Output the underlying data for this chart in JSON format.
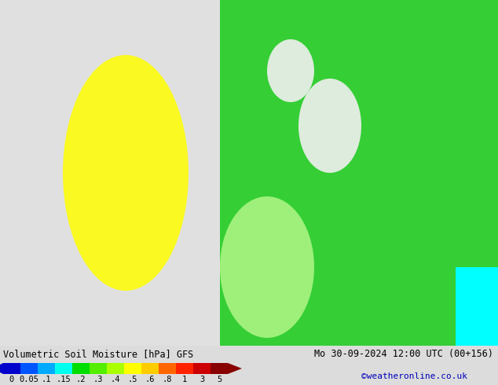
{
  "title_left": "Volumetric Soil Moisture [hPa] GFS",
  "title_right": "Mo 30-09-2024 12:00 UTC (00+156)",
  "credit": "©weatheronline.co.uk",
  "colorbar_values": [
    0,
    0.05,
    0.1,
    0.15,
    0.2,
    0.3,
    0.4,
    0.5,
    0.6,
    0.8,
    1,
    3,
    5
  ],
  "colorbar_colors": [
    "#0000cd",
    "#0055ff",
    "#00aaff",
    "#00ffee",
    "#00dd00",
    "#55ee00",
    "#aaff00",
    "#ffff00",
    "#ffcc00",
    "#ff6600",
    "#ff2200",
    "#cc0000",
    "#880000"
  ],
  "cb_tick_labels": [
    "0",
    "0.05",
    ".1",
    ".15",
    ".2",
    ".3",
    ".4",
    ".5",
    ".6",
    ".8",
    "1",
    "3",
    "5"
  ],
  "bg_color": "#dcdcdc",
  "title_fontsize": 8.5,
  "credit_fontsize": 8,
  "tick_fontsize": 7.5,
  "map_dominant_color": "#4caf50",
  "map_secondary_color": "#dcdcdc",
  "map_yellow_color": "#ffff00",
  "map_cyan_color": "#00ffff"
}
